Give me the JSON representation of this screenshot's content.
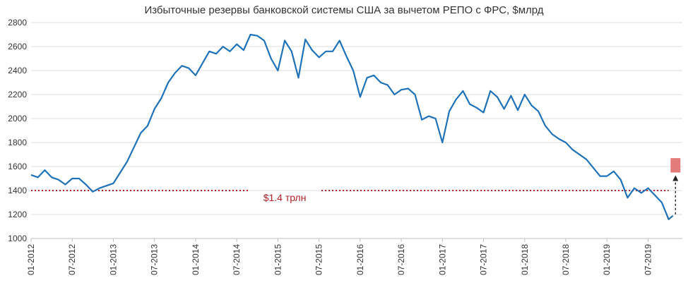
{
  "chart_data": {
    "type": "line",
    "title": "Избыточные резервы банковской системы США за вычетом РЕПО с ФРС, $млрд",
    "xlabel": "",
    "ylabel": "",
    "ylim": [
      1000,
      2800
    ],
    "yticks": [
      1000,
      1200,
      1400,
      1600,
      1800,
      2000,
      2200,
      2400,
      2600,
      2800
    ],
    "xticks": [
      "01-2012",
      "07-2012",
      "01-2013",
      "07-2013",
      "01-2014",
      "07-2014",
      "01-2015",
      "07-2015",
      "01-2016",
      "07-2016",
      "01-2017",
      "07-2017",
      "01-2018",
      "07-2018",
      "01-2019",
      "07-2019"
    ],
    "grid": "horizontal",
    "series": [
      {
        "name": "",
        "color": "#1f72b8",
        "points": [
          [
            "2012-01",
            1530
          ],
          [
            "2012-02",
            1510
          ],
          [
            "2012-03",
            1570
          ],
          [
            "2012-04",
            1510
          ],
          [
            "2012-05",
            1490
          ],
          [
            "2012-06",
            1450
          ],
          [
            "2012-07",
            1500
          ],
          [
            "2012-08",
            1500
          ],
          [
            "2012-09",
            1450
          ],
          [
            "2012-10",
            1390
          ],
          [
            "2012-11",
            1420
          ],
          [
            "2012-12",
            1440
          ],
          [
            "2013-01",
            1460
          ],
          [
            "2013-02",
            1550
          ],
          [
            "2013-03",
            1640
          ],
          [
            "2013-04",
            1760
          ],
          [
            "2013-05",
            1880
          ],
          [
            "2013-06",
            1940
          ],
          [
            "2013-07",
            2080
          ],
          [
            "2013-08",
            2170
          ],
          [
            "2013-09",
            2300
          ],
          [
            "2013-10",
            2380
          ],
          [
            "2013-11",
            2440
          ],
          [
            "2013-12",
            2420
          ],
          [
            "2014-01",
            2360
          ],
          [
            "2014-02",
            2460
          ],
          [
            "2014-03",
            2560
          ],
          [
            "2014-04",
            2540
          ],
          [
            "2014-05",
            2600
          ],
          [
            "2014-06",
            2560
          ],
          [
            "2014-07",
            2620
          ],
          [
            "2014-08",
            2570
          ],
          [
            "2014-09",
            2700
          ],
          [
            "2014-10",
            2690
          ],
          [
            "2014-11",
            2650
          ],
          [
            "2014-12",
            2500
          ],
          [
            "2015-01",
            2400
          ],
          [
            "2015-02",
            2650
          ],
          [
            "2015-03",
            2560
          ],
          [
            "2015-04",
            2340
          ],
          [
            "2015-05",
            2660
          ],
          [
            "2015-06",
            2570
          ],
          [
            "2015-07",
            2510
          ],
          [
            "2015-08",
            2560
          ],
          [
            "2015-09",
            2560
          ],
          [
            "2015-10",
            2650
          ],
          [
            "2015-11",
            2520
          ],
          [
            "2015-12",
            2400
          ],
          [
            "2016-01",
            2180
          ],
          [
            "2016-02",
            2340
          ],
          [
            "2016-03",
            2360
          ],
          [
            "2016-04",
            2300
          ],
          [
            "2016-05",
            2280
          ],
          [
            "2016-06",
            2200
          ],
          [
            "2016-07",
            2240
          ],
          [
            "2016-08",
            2250
          ],
          [
            "2016-09",
            2200
          ],
          [
            "2016-10",
            1990
          ],
          [
            "2016-11",
            2020
          ],
          [
            "2016-12",
            2000
          ],
          [
            "2017-01",
            1800
          ],
          [
            "2017-02",
            2060
          ],
          [
            "2017-03",
            2160
          ],
          [
            "2017-04",
            2230
          ],
          [
            "2017-05",
            2120
          ],
          [
            "2017-06",
            2090
          ],
          [
            "2017-07",
            2050
          ],
          [
            "2017-08",
            2230
          ],
          [
            "2017-09",
            2180
          ],
          [
            "2017-10",
            2080
          ],
          [
            "2017-11",
            2190
          ],
          [
            "2017-12",
            2070
          ],
          [
            "2018-01",
            2200
          ],
          [
            "2018-02",
            2110
          ],
          [
            "2018-03",
            2060
          ],
          [
            "2018-04",
            1940
          ],
          [
            "2018-05",
            1870
          ],
          [
            "2018-06",
            1830
          ],
          [
            "2018-07",
            1800
          ],
          [
            "2018-08",
            1740
          ],
          [
            "2018-09",
            1700
          ],
          [
            "2018-10",
            1660
          ],
          [
            "2018-11",
            1590
          ],
          [
            "2018-12",
            1520
          ],
          [
            "2019-01",
            1520
          ],
          [
            "2019-02",
            1560
          ],
          [
            "2019-03",
            1490
          ],
          [
            "2019-04",
            1340
          ],
          [
            "2019-05",
            1420
          ],
          [
            "2019-06",
            1380
          ],
          [
            "2019-07",
            1420
          ],
          [
            "2019-08",
            1360
          ],
          [
            "2019-09",
            1300
          ],
          [
            "2019-10",
            1160
          ],
          [
            "2019-10-20",
            1190
          ]
        ]
      }
    ],
    "reference_line": {
      "value": 1400,
      "label": "$1.4 трлн",
      "color": "#b11f24",
      "style": "dotted"
    },
    "marker": {
      "x": "2019-11",
      "y_low": 1550,
      "y_high": 1670,
      "color": "#e37b7b"
    }
  }
}
